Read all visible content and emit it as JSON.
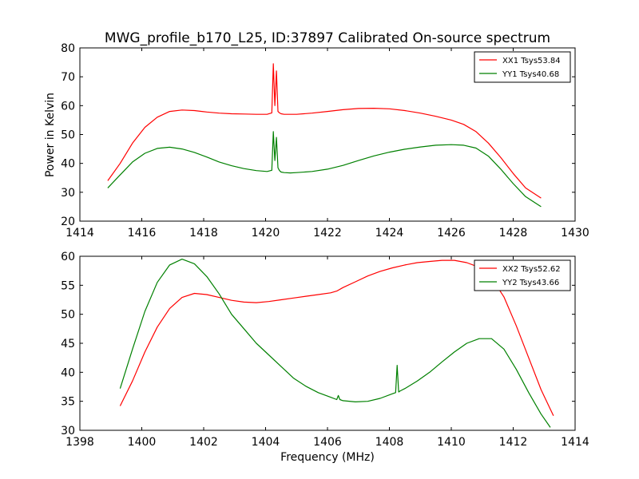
{
  "figure": {
    "title": "MWG_profile_b170_L25, ID:37897 Calibrated On-source spectrum",
    "ylabel": "Power in Kelvin",
    "xlabel": "Frequency (MHz)"
  },
  "chart_data": [
    {
      "type": "line",
      "title": "MWG_profile_b170_L25, ID:37897 Calibrated On-source spectrum",
      "ylabel": "Power in Kelvin",
      "xlabel": "",
      "xlim": [
        1414,
        1430
      ],
      "ylim": [
        20,
        80
      ],
      "xticks": [
        1414,
        1416,
        1418,
        1420,
        1422,
        1424,
        1426,
        1428,
        1430
      ],
      "yticks": [
        20,
        30,
        40,
        50,
        60,
        70,
        80
      ],
      "grid": false,
      "legend": "top-right",
      "series": [
        {
          "name": "XX1 Tsys53.84",
          "color": "#ff0000",
          "x": [
            1414.9,
            1415.3,
            1415.7,
            1416.1,
            1416.5,
            1416.9,
            1417.3,
            1417.7,
            1418.1,
            1418.5,
            1418.9,
            1419.3,
            1419.7,
            1420.05,
            1420.2,
            1420.25,
            1420.3,
            1420.35,
            1420.4,
            1420.45,
            1420.5,
            1420.6,
            1420.8,
            1421.0,
            1421.5,
            1422.0,
            1422.5,
            1423.0,
            1423.5,
            1424.0,
            1424.5,
            1425.0,
            1425.5,
            1426.0,
            1426.4,
            1426.8,
            1427.2,
            1427.6,
            1428.0,
            1428.4,
            1428.9
          ],
          "values": [
            34,
            40,
            47,
            52.5,
            56,
            58,
            58.5,
            58.3,
            57.8,
            57.4,
            57.2,
            57.1,
            57.0,
            57.0,
            57.5,
            74.5,
            60,
            72,
            58,
            57.5,
            57.2,
            57.0,
            57.0,
            57.0,
            57.4,
            58.0,
            58.6,
            59.0,
            59.1,
            58.9,
            58.3,
            57.4,
            56.3,
            55.0,
            53.5,
            51.0,
            47.0,
            42.0,
            36.5,
            31.5,
            28.0
          ]
        },
        {
          "name": "YY1 Tsys40.68",
          "color": "#008000",
          "x": [
            1414.9,
            1415.3,
            1415.7,
            1416.1,
            1416.5,
            1416.9,
            1417.3,
            1417.7,
            1418.1,
            1418.5,
            1418.9,
            1419.3,
            1419.7,
            1420.05,
            1420.2,
            1420.25,
            1420.3,
            1420.35,
            1420.4,
            1420.45,
            1420.5,
            1420.6,
            1420.8,
            1421.0,
            1421.5,
            1422.0,
            1422.5,
            1423.0,
            1423.5,
            1424.0,
            1424.5,
            1425.0,
            1425.5,
            1426.0,
            1426.4,
            1426.8,
            1427.2,
            1427.6,
            1428.0,
            1428.4,
            1428.9
          ],
          "values": [
            31.5,
            36,
            40.5,
            43.5,
            45.2,
            45.6,
            45.0,
            43.8,
            42.2,
            40.5,
            39.2,
            38.2,
            37.5,
            37.2,
            37.6,
            51.0,
            41.0,
            49.0,
            38.5,
            37.5,
            37.0,
            36.8,
            36.7,
            36.8,
            37.2,
            38.0,
            39.3,
            41.0,
            42.6,
            43.9,
            44.9,
            45.7,
            46.3,
            46.5,
            46.3,
            45.3,
            42.5,
            38.0,
            33.0,
            28.5,
            25.0
          ]
        }
      ]
    },
    {
      "type": "line",
      "title": "",
      "ylabel": "",
      "xlabel": "Frequency (MHz)",
      "xlim": [
        1398,
        1414
      ],
      "ylim": [
        30,
        60
      ],
      "xticks": [
        1398,
        1400,
        1402,
        1404,
        1406,
        1408,
        1410,
        1412,
        1414
      ],
      "yticks": [
        30,
        35,
        40,
        45,
        50,
        55,
        60
      ],
      "grid": false,
      "legend": "top-right",
      "series": [
        {
          "name": "XX2 Tsys52.62",
          "color": "#ff0000",
          "x": [
            1399.3,
            1399.7,
            1400.1,
            1400.5,
            1400.9,
            1401.3,
            1401.7,
            1402.1,
            1402.5,
            1402.9,
            1403.3,
            1403.7,
            1404.1,
            1404.5,
            1404.9,
            1405.3,
            1405.7,
            1406.1,
            1406.3,
            1406.5,
            1406.9,
            1407.3,
            1407.7,
            1408.1,
            1408.5,
            1408.9,
            1409.3,
            1409.7,
            1410.1,
            1410.5,
            1410.9,
            1411.3,
            1411.7,
            1412.1,
            1412.5,
            1412.9,
            1413.3
          ],
          "values": [
            34.2,
            38.5,
            43.5,
            47.8,
            51.0,
            52.9,
            53.6,
            53.4,
            52.9,
            52.4,
            52.1,
            52.0,
            52.2,
            52.5,
            52.8,
            53.1,
            53.4,
            53.7,
            54.0,
            54.6,
            55.6,
            56.6,
            57.4,
            58.0,
            58.5,
            58.9,
            59.1,
            59.3,
            59.3,
            58.9,
            58.1,
            56.3,
            53.0,
            48.0,
            42.5,
            37.0,
            32.5
          ]
        },
        {
          "name": "YY2 Tsys43.66",
          "color": "#008000",
          "x": [
            1399.3,
            1399.7,
            1400.1,
            1400.5,
            1400.9,
            1401.3,
            1401.7,
            1402.1,
            1402.5,
            1402.9,
            1403.3,
            1403.7,
            1404.1,
            1404.5,
            1404.9,
            1405.3,
            1405.7,
            1406.1,
            1406.3,
            1406.35,
            1406.4,
            1406.5,
            1406.9,
            1407.3,
            1407.7,
            1408.1,
            1408.2,
            1408.25,
            1408.3,
            1408.35,
            1408.5,
            1408.9,
            1409.3,
            1409.7,
            1410.1,
            1410.5,
            1410.9,
            1411.3,
            1411.7,
            1412.1,
            1412.5,
            1412.9,
            1413.2
          ],
          "values": [
            37.2,
            44.0,
            50.5,
            55.5,
            58.5,
            59.5,
            58.7,
            56.5,
            53.5,
            50.0,
            47.5,
            45.0,
            43.0,
            41.0,
            39.0,
            37.6,
            36.5,
            35.7,
            35.3,
            36.0,
            35.3,
            35.1,
            34.9,
            35.0,
            35.5,
            36.3,
            36.5,
            41.2,
            36.6,
            36.8,
            37.2,
            38.5,
            40.0,
            41.8,
            43.5,
            45.0,
            45.8,
            45.8,
            44.0,
            40.5,
            36.5,
            32.8,
            30.5
          ]
        }
      ]
    }
  ]
}
